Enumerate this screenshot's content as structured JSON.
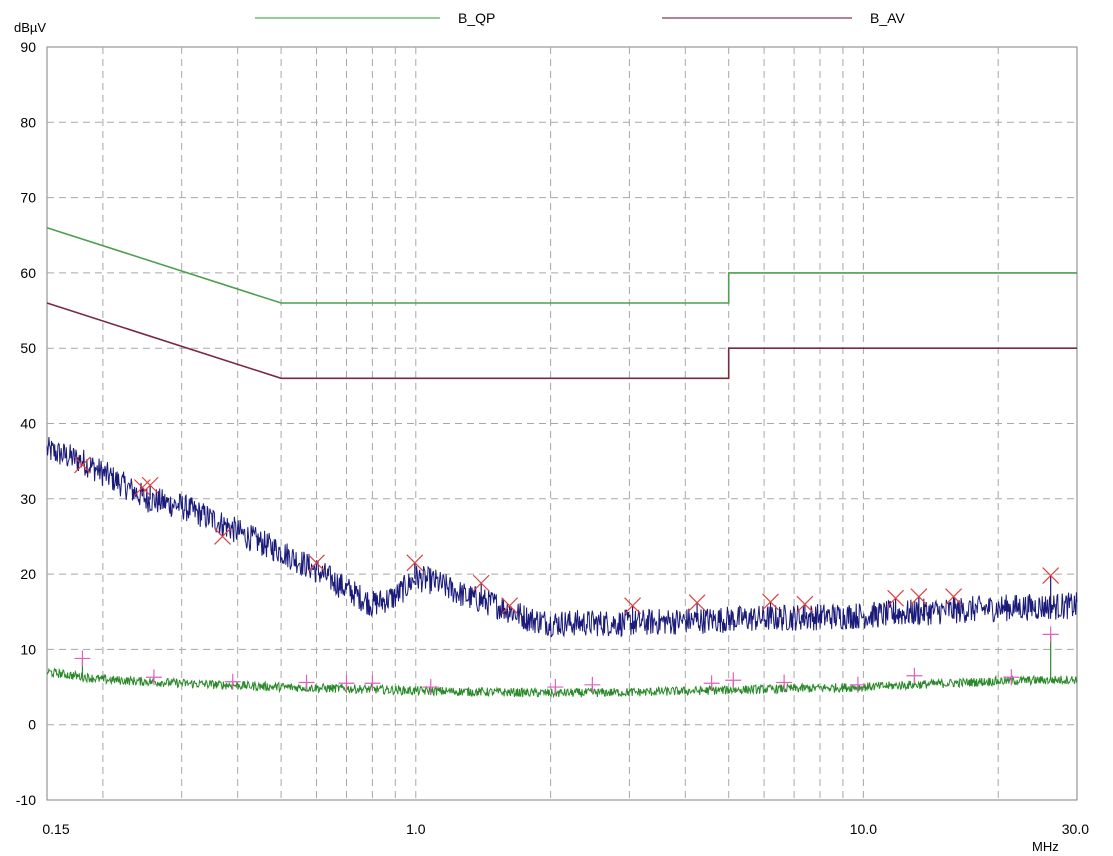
{
  "chart_data": {
    "type": "line",
    "ylabel": "dBµV",
    "xlabel": "MHz",
    "x_scale": "log",
    "xlim": [
      0.15,
      30.0
    ],
    "ylim": [
      -10,
      90
    ],
    "grid": true,
    "x_tick_labels": [
      {
        "value": 0.15,
        "label": "0.15"
      },
      {
        "value": 1.0,
        "label": "1.0"
      },
      {
        "value": 10.0,
        "label": "10.0"
      },
      {
        "value": 30.0,
        "label": "30.0"
      }
    ],
    "x_gridlines": [
      0.2,
      0.3,
      0.4,
      0.5,
      0.6,
      0.7,
      0.8,
      0.9,
      1,
      2,
      3,
      4,
      5,
      6,
      7,
      8,
      9,
      10,
      20
    ],
    "y_ticks": [
      -10,
      0,
      10,
      20,
      30,
      40,
      50,
      60,
      70,
      80,
      90
    ],
    "legend": {
      "placement": "top",
      "entries": [
        {
          "name": "B_QP",
          "color": "#6fbf6f"
        },
        {
          "name": "B_AV",
          "color": "#9c5a72"
        }
      ]
    },
    "limit_lines": [
      {
        "name": "B_QP",
        "color": "#4f9f4f",
        "points": [
          [
            0.15,
            66
          ],
          [
            0.5,
            56
          ],
          [
            5.0,
            56
          ],
          [
            5.0,
            60
          ],
          [
            30.0,
            60
          ]
        ]
      },
      {
        "name": "B_AV",
        "color": "#7a2a3e",
        "points": [
          [
            0.15,
            56
          ],
          [
            0.5,
            46
          ],
          [
            5.0,
            46
          ],
          [
            5.0,
            50
          ],
          [
            30.0,
            50
          ]
        ]
      }
    ],
    "traces": [
      {
        "color": "#1a1a7a",
        "points": [
          [
            0.15,
            36.5
          ],
          [
            0.18,
            35
          ],
          [
            0.22,
            32
          ],
          [
            0.25,
            30
          ],
          [
            0.3,
            29
          ],
          [
            0.36,
            27
          ],
          [
            0.42,
            25
          ],
          [
            0.5,
            23
          ],
          [
            0.6,
            20.5
          ],
          [
            0.7,
            18
          ],
          [
            0.8,
            16
          ],
          [
            0.9,
            17
          ],
          [
            1.0,
            19.5
          ],
          [
            1.1,
            19
          ],
          [
            1.3,
            17
          ],
          [
            1.5,
            16
          ],
          [
            1.8,
            14
          ],
          [
            2.0,
            13.5
          ],
          [
            3.0,
            13.5
          ],
          [
            5.0,
            14
          ],
          [
            10.0,
            14.5
          ],
          [
            20.0,
            15.5
          ],
          [
            30.0,
            15.8
          ]
        ]
      },
      {
        "color": "#2a8a2a",
        "points": [
          [
            0.15,
            7
          ],
          [
            0.2,
            6
          ],
          [
            0.3,
            5.5
          ],
          [
            0.5,
            5
          ],
          [
            0.8,
            4.7
          ],
          [
            1.0,
            4.5
          ],
          [
            2.0,
            4.2
          ],
          [
            3.0,
            4.3
          ],
          [
            5.0,
            4.6
          ],
          [
            10.0,
            5
          ],
          [
            20.0,
            5.8
          ],
          [
            30.0,
            6
          ]
        ]
      }
    ],
    "qp_markers": {
      "symbol": "x",
      "color": "#e04040",
      "points": [
        [
          0.18,
          34.5
        ],
        [
          0.245,
          31.5
        ],
        [
          0.255,
          31.8
        ],
        [
          0.37,
          25
        ],
        [
          0.6,
          21.5
        ],
        [
          0.995,
          21.5
        ],
        [
          1.4,
          18.8
        ],
        [
          1.62,
          15.8
        ],
        [
          3.05,
          15.8
        ],
        [
          4.25,
          16.2
        ],
        [
          6.2,
          16.3
        ],
        [
          7.4,
          16
        ],
        [
          11.8,
          16.8
        ],
        [
          13.3,
          17
        ],
        [
          15.9,
          17
        ],
        [
          26.2,
          19.8
        ]
      ]
    },
    "av_markers": {
      "symbol": "+",
      "color": "#e060c0",
      "points": [
        [
          0.18,
          8.8
        ],
        [
          0.26,
          6.3
        ],
        [
          0.39,
          5.7
        ],
        [
          0.57,
          5.6
        ],
        [
          0.7,
          5.5
        ],
        [
          0.8,
          5.5
        ],
        [
          1.08,
          5
        ],
        [
          2.05,
          5
        ],
        [
          2.48,
          5.3
        ],
        [
          4.58,
          5.5
        ],
        [
          5.12,
          5.9
        ],
        [
          6.65,
          5.6
        ],
        [
          9.72,
          5.3
        ],
        [
          13.0,
          6.5
        ],
        [
          21.4,
          6.3
        ],
        [
          26.2,
          12
        ]
      ]
    }
  }
}
